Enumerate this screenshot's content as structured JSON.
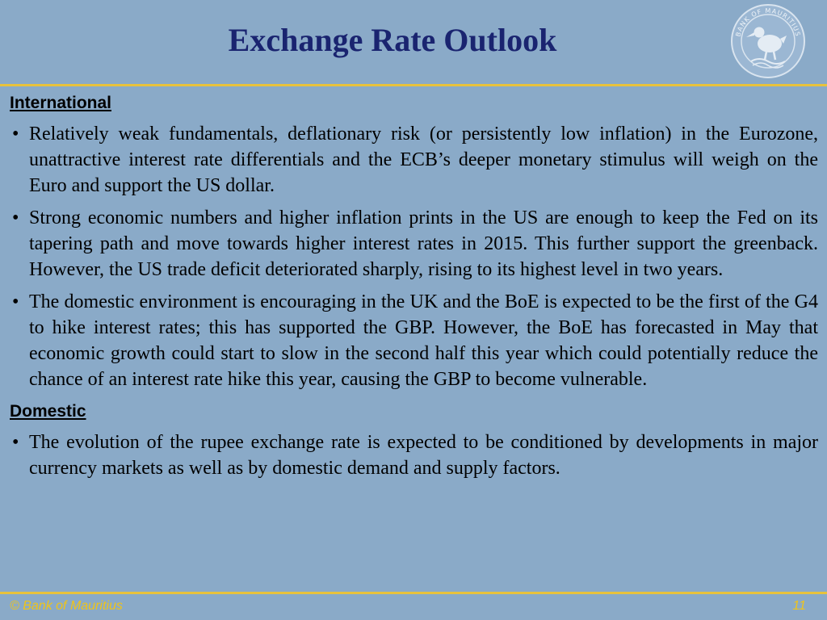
{
  "slide": {
    "title": "Exchange Rate Outlook",
    "seal": {
      "icon": "bank-of-mauritius-seal-icon",
      "text": "BANK OF MAURITIUS"
    },
    "sections": [
      {
        "heading": "International",
        "bullets": [
          "Relatively weak fundamentals, deflationary risk (or persistently low inflation) in the Eurozone, unattractive interest rate differentials and the ECB’s deeper monetary stimulus will weigh on the Euro and support the US dollar.",
          "Strong economic numbers and higher inflation prints in the US are enough to keep the Fed on its tapering path and move towards higher interest rates in 2015. This further support the greenback. However, the US trade deficit deteriorated sharply, rising to its highest level in two years.",
          "The domestic environment is encouraging in the UK and the BoE is expected to be the first of the G4 to hike interest rates; this has supported the GBP. However, the BoE has forecasted in May that economic growth could start to slow in the second half this year which could potentially reduce the chance of an interest rate hike this year, causing the GBP to become vulnerable."
        ]
      },
      {
        "heading": "Domestic",
        "bullets": [
          "The evolution of the rupee exchange rate is expected to be conditioned by developments in major currency markets as well as by domestic demand and supply factors."
        ]
      }
    ]
  },
  "footer": {
    "copyright": "© Bank of Mauritius",
    "page_number": "11"
  },
  "colors": {
    "background": "#8aaac8",
    "title": "#1a2470",
    "rule": "#e8c23c",
    "footer_text": "#f0c418"
  }
}
